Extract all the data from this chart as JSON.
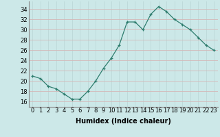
{
  "x": [
    0,
    1,
    2,
    3,
    4,
    5,
    6,
    7,
    8,
    9,
    10,
    11,
    12,
    13,
    14,
    15,
    16,
    17,
    18,
    19,
    20,
    21,
    22,
    23
  ],
  "y": [
    21,
    20.5,
    19,
    18.5,
    17.5,
    16.5,
    16.5,
    18,
    20,
    22.5,
    24.5,
    27,
    31.5,
    31.5,
    30,
    33,
    34.5,
    33.5,
    32,
    31,
    30,
    28.5,
    27,
    26
  ],
  "line_color": "#2e7d6e",
  "marker": "+",
  "marker_size": 3,
  "background_color": "#cce8e8",
  "grid_color": "#b8d4d4",
  "xlabel": "Humidex (Indice chaleur)",
  "xlim": [
    -0.5,
    23.5
  ],
  "ylim": [
    15,
    35.5
  ],
  "yticks": [
    16,
    18,
    20,
    22,
    24,
    26,
    28,
    30,
    32,
    34
  ],
  "xtick_labels": [
    "0",
    "1",
    "2",
    "3",
    "4",
    "5",
    "6",
    "7",
    "8",
    "9",
    "10",
    "11",
    "12",
    "13",
    "14",
    "15",
    "16",
    "17",
    "18",
    "19",
    "20",
    "21",
    "22",
    "23"
  ],
  "axis_fontsize": 6,
  "label_fontsize": 7
}
